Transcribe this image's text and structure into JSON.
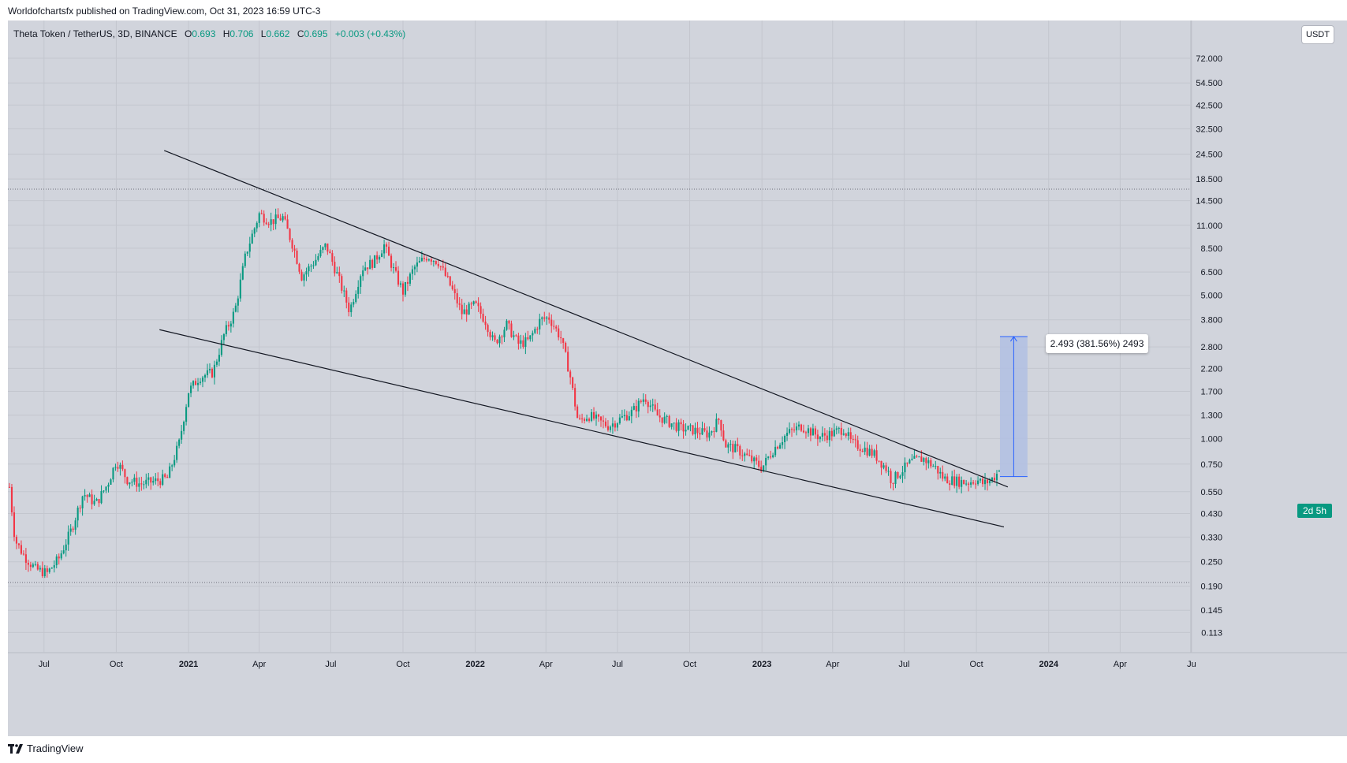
{
  "header": {
    "published": "Worldofchartsfx published on TradingView.com, Oct 31, 2023 16:59 UTC-3"
  },
  "legend": {
    "symbol": "Theta Token / TetherUS, 3D, BINANCE",
    "open_label": "O",
    "open": "0.693",
    "high_label": "H",
    "high": "0.706",
    "low_label": "L",
    "low": "0.662",
    "close_label": "C",
    "close": "0.695",
    "change": "+0.003 (+0.43%)"
  },
  "currency_button": "USDT",
  "countdown": "2d 5h",
  "measure": {
    "label": "2.493 (381.56%) 2493"
  },
  "footer": {
    "brand": "TradingView"
  },
  "colors": {
    "up": "#089981",
    "down": "#f23645",
    "background": "#d1d4dc",
    "measure_fill": "#b2bfe3",
    "measure_line": "#2962ff"
  },
  "chart_data": {
    "type": "candlestick",
    "title": "Theta Token / TetherUS, 3D, BINANCE",
    "ylabel": "USDT",
    "y_scale": "log",
    "ylim": [
      0.09,
      110
    ],
    "xlim": [
      "2020-05-16",
      "2024-06-28"
    ],
    "y_ticks": [
      "72.000",
      "54.500",
      "42.500",
      "32.500",
      "24.500",
      "18.500",
      "14.500",
      "11.000",
      "8.500",
      "6.500",
      "5.000",
      "3.800",
      "2.800",
      "2.200",
      "1.700",
      "1.300",
      "1.000",
      "0.750",
      "0.550",
      "0.430",
      "0.330",
      "0.250",
      "0.190",
      "0.145",
      "0.113"
    ],
    "x_ticks": [
      {
        "label": "Jul",
        "date": "2020-07-01",
        "bold": false
      },
      {
        "label": "Oct",
        "date": "2020-10-01",
        "bold": false
      },
      {
        "label": "2021",
        "date": "2021-01-01",
        "bold": true
      },
      {
        "label": "Apr",
        "date": "2021-04-01",
        "bold": false
      },
      {
        "label": "Jul",
        "date": "2021-07-01",
        "bold": false
      },
      {
        "label": "Oct",
        "date": "2021-10-01",
        "bold": false
      },
      {
        "label": "2022",
        "date": "2022-01-01",
        "bold": true
      },
      {
        "label": "Apr",
        "date": "2022-04-01",
        "bold": false
      },
      {
        "label": "Jul",
        "date": "2022-07-01",
        "bold": false
      },
      {
        "label": "Oct",
        "date": "2022-10-01",
        "bold": false
      },
      {
        "label": "2023",
        "date": "2023-01-01",
        "bold": true
      },
      {
        "label": "Apr",
        "date": "2023-04-01",
        "bold": false
      },
      {
        "label": "Jul",
        "date": "2023-07-01",
        "bold": false
      },
      {
        "label": "Oct",
        "date": "2023-10-01",
        "bold": false
      },
      {
        "label": "2024",
        "date": "2024-01-01",
        "bold": true
      },
      {
        "label": "Apr",
        "date": "2024-04-01",
        "bold": false
      },
      {
        "label": "Ju",
        "date": "2024-07-01",
        "bold": false
      }
    ],
    "price_path": [
      [
        "2020-05-18",
        0.58
      ],
      [
        "2020-05-25",
        0.32
      ],
      [
        "2020-06-05",
        0.27
      ],
      [
        "2020-06-20",
        0.23
      ],
      [
        "2020-07-05",
        0.22
      ],
      [
        "2020-07-20",
        0.26
      ],
      [
        "2020-08-05",
        0.36
      ],
      [
        "2020-08-20",
        0.54
      ],
      [
        "2020-09-05",
        0.48
      ],
      [
        "2020-09-20",
        0.6
      ],
      [
        "2020-10-01",
        0.78
      ],
      [
        "2020-10-15",
        0.63
      ],
      [
        "2020-11-01",
        0.6
      ],
      [
        "2020-11-20",
        0.62
      ],
      [
        "2020-12-05",
        0.64
      ],
      [
        "2020-12-20",
        0.95
      ],
      [
        "2021-01-01",
        1.7
      ],
      [
        "2021-01-15",
        2.0
      ],
      [
        "2021-02-01",
        2.1
      ],
      [
        "2021-02-15",
        3.2
      ],
      [
        "2021-03-01",
        4.2
      ],
      [
        "2021-03-15",
        8.0
      ],
      [
        "2021-04-01",
        12.5
      ],
      [
        "2021-04-15",
        11.5
      ],
      [
        "2021-05-01",
        12.0
      ],
      [
        "2021-05-15",
        8.5
      ],
      [
        "2021-05-25",
        6.2
      ],
      [
        "2021-06-10",
        7.3
      ],
      [
        "2021-06-25",
        8.8
      ],
      [
        "2021-07-10",
        6.2
      ],
      [
        "2021-07-25",
        4.2
      ],
      [
        "2021-08-10",
        6.8
      ],
      [
        "2021-08-25",
        7.3
      ],
      [
        "2021-09-07",
        8.8
      ],
      [
        "2021-09-20",
        6.5
      ],
      [
        "2021-10-01",
        5.2
      ],
      [
        "2021-10-15",
        6.8
      ],
      [
        "2021-11-01",
        7.8
      ],
      [
        "2021-11-15",
        7.3
      ],
      [
        "2021-12-01",
        5.5
      ],
      [
        "2021-12-15",
        4.1
      ],
      [
        "2022-01-01",
        4.5
      ],
      [
        "2022-01-15",
        3.7
      ],
      [
        "2022-01-25",
        2.9
      ],
      [
        "2022-02-10",
        3.6
      ],
      [
        "2022-02-25",
        2.9
      ],
      [
        "2022-03-10",
        3.0
      ],
      [
        "2022-03-25",
        3.8
      ],
      [
        "2022-04-05",
        3.9
      ],
      [
        "2022-04-20",
        3.1
      ],
      [
        "2022-05-01",
        2.1
      ],
      [
        "2022-05-12",
        1.2
      ],
      [
        "2022-05-25",
        1.3
      ],
      [
        "2022-06-10",
        1.2
      ],
      [
        "2022-06-20",
        1.15
      ],
      [
        "2022-07-05",
        1.25
      ],
      [
        "2022-07-20",
        1.35
      ],
      [
        "2022-08-05",
        1.6
      ],
      [
        "2022-08-20",
        1.3
      ],
      [
        "2022-09-05",
        1.2
      ],
      [
        "2022-09-20",
        1.12
      ],
      [
        "2022-10-05",
        1.1
      ],
      [
        "2022-10-25",
        1.05
      ],
      [
        "2022-11-08",
        1.25
      ],
      [
        "2022-11-15",
        0.93
      ],
      [
        "2022-12-01",
        0.88
      ],
      [
        "2022-12-20",
        0.78
      ],
      [
        "2023-01-01",
        0.72
      ],
      [
        "2023-01-15",
        0.88
      ],
      [
        "2023-02-01",
        1.05
      ],
      [
        "2023-02-20",
        1.15
      ],
      [
        "2023-03-01",
        1.1
      ],
      [
        "2023-03-15",
        1.02
      ],
      [
        "2023-04-01",
        1.06
      ],
      [
        "2023-04-15",
        1.12
      ],
      [
        "2023-04-25",
        0.95
      ],
      [
        "2023-05-10",
        0.9
      ],
      [
        "2023-05-25",
        0.83
      ],
      [
        "2023-06-10",
        0.7
      ],
      [
        "2023-06-15",
        0.62
      ],
      [
        "2023-06-25",
        0.68
      ],
      [
        "2023-07-10",
        0.77
      ],
      [
        "2023-07-25",
        0.8
      ],
      [
        "2023-08-10",
        0.72
      ],
      [
        "2023-08-20",
        0.64
      ],
      [
        "2023-09-05",
        0.62
      ],
      [
        "2023-09-20",
        0.61
      ],
      [
        "2023-10-01",
        0.63
      ],
      [
        "2023-10-10",
        0.6
      ],
      [
        "2023-10-20",
        0.63
      ],
      [
        "2023-10-31",
        0.695
      ]
    ],
    "last_candle": {
      "open": 0.693,
      "high": 0.706,
      "low": 0.662,
      "close": 0.695
    },
    "horizontal_levels": [
      16.5,
      0.198
    ],
    "trendlines": [
      {
        "name": "upper-trendline",
        "from": [
          "2020-12-01",
          25.5
        ],
        "to": [
          "2023-11-10",
          0.58
        ]
      },
      {
        "name": "lower-trendline",
        "from": [
          "2020-11-25",
          3.4
        ],
        "to": [
          "2023-11-05",
          0.37
        ]
      }
    ],
    "measure_box": {
      "from_date": "2023-10-31",
      "to_date": "2023-12-05",
      "low": 0.652,
      "high": 3.145,
      "change": 2.493,
      "change_percent": 381.56,
      "ticks": 2493
    }
  }
}
